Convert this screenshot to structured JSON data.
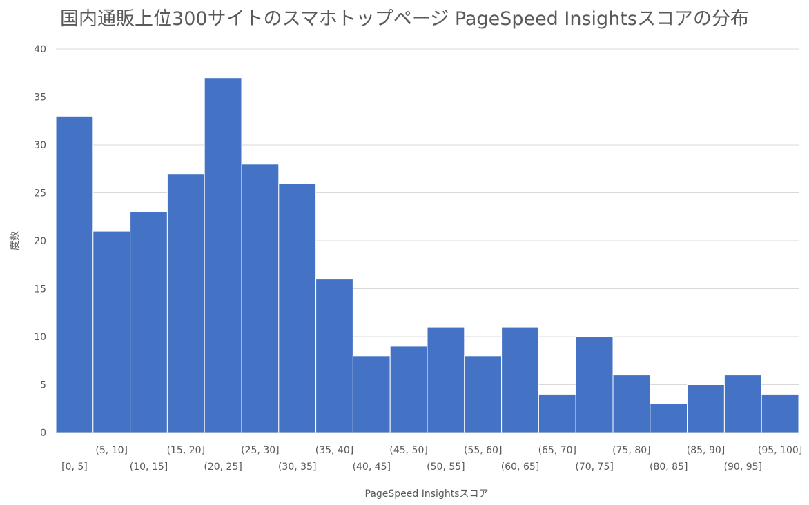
{
  "chart_data": {
    "type": "bar",
    "title": "国内通販上位300サイトのスマホトップページ PageSpeed Insightsスコアの分布",
    "xlabel": "PageSpeed Insightsスコア",
    "ylabel": "度数",
    "ylim": [
      0,
      40
    ],
    "yticks": [
      0,
      5,
      10,
      15,
      20,
      25,
      30,
      35,
      40
    ],
    "grid": true,
    "legend": "none",
    "bar_color": "#4472C4",
    "categories": [
      "[0, 5]",
      "(5, 10]",
      "(10, 15]",
      "(15, 20]",
      "(20, 25]",
      "(25, 30]",
      "(30, 35]",
      "(35, 40]",
      "(40, 45]",
      "(45, 50]",
      "(50, 55]",
      "(55, 60]",
      "(60, 65]",
      "(65, 70]",
      "(70, 75]",
      "(75, 80]",
      "(80, 85]",
      "(85, 90]",
      "(90, 95]",
      "(95, 100]"
    ],
    "values": [
      33,
      21,
      23,
      27,
      37,
      28,
      26,
      16,
      8,
      9,
      11,
      8,
      11,
      4,
      10,
      6,
      3,
      5,
      6,
      4
    ]
  }
}
